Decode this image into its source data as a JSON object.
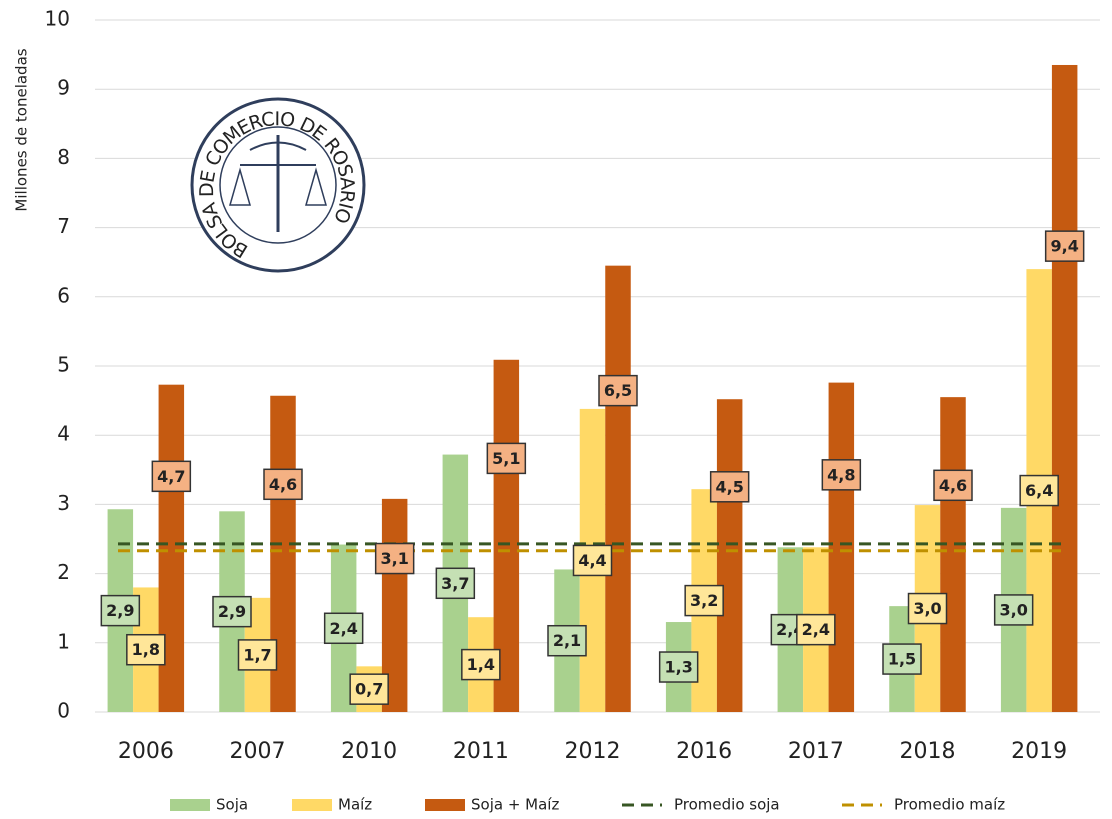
{
  "chart_data": {
    "type": "bar",
    "ylabel": "Millones de toneladas",
    "logo": "BOLSA DE COMERCIO DE ROSARIO",
    "categories": [
      "2006",
      "2007",
      "2010",
      "2011",
      "2012",
      "2016",
      "2017",
      "2018",
      "2019"
    ],
    "series": [
      {
        "name": "Soja",
        "color": "#a9d18e",
        "label_color": "#c5e0b4",
        "values": [
          2.93,
          2.9,
          2.42,
          3.72,
          2.06,
          1.3,
          2.38,
          1.53,
          2.95
        ],
        "value_labels": [
          "2,9",
          "2,9",
          "2,4",
          "3,7",
          "2,1",
          "1,3",
          "2,4",
          "1,5",
          "3,0"
        ]
      },
      {
        "name": "Maíz",
        "color": "#ffd966",
        "label_color": "#ffe699",
        "values": [
          1.8,
          1.65,
          0.66,
          1.37,
          4.38,
          3.22,
          2.38,
          2.99,
          6.4
        ],
        "value_labels": [
          "1,8",
          "1,7",
          "0,7",
          "1,4",
          "4,4",
          "3,2",
          "2,4",
          "3,0",
          "6,4"
        ]
      },
      {
        "name": "Soja + Maíz",
        "color": "#c55a11",
        "label_color": "#f4b183",
        "values": [
          4.73,
          4.57,
          3.08,
          5.09,
          6.45,
          4.52,
          4.76,
          4.55,
          9.35
        ],
        "value_labels": [
          "4,7",
          "4,6",
          "3,1",
          "5,1",
          "6,5",
          "4,5",
          "4,8",
          "4,6",
          "9,4"
        ]
      }
    ],
    "reference_lines": [
      {
        "name": "Promedio soja",
        "color": "#375623",
        "value": 2.43
      },
      {
        "name": "Promedio maíz",
        "color": "#bf9000",
        "value": 2.33
      }
    ],
    "ylim": [
      0,
      10
    ],
    "yticks": [
      0,
      1,
      2,
      3,
      4,
      5,
      6,
      7,
      8,
      9,
      10
    ],
    "grid": true
  }
}
